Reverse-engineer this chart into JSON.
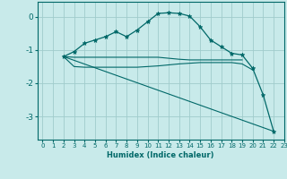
{
  "bg_color": "#c8eaea",
  "grid_color": "#a0cccc",
  "line_color": "#006868",
  "xlabel": "Humidex (Indice chaleur)",
  "xlim": [
    -0.5,
    23
  ],
  "ylim": [
    -3.7,
    0.45
  ],
  "yticks": [
    0,
    -1,
    -2,
    -3
  ],
  "xticks": [
    0,
    1,
    2,
    3,
    4,
    5,
    6,
    7,
    8,
    9,
    10,
    11,
    12,
    13,
    14,
    15,
    16,
    17,
    18,
    19,
    20,
    21,
    22,
    23
  ],
  "series": [
    {
      "x": [
        2,
        3,
        4,
        5,
        6,
        7,
        8,
        9,
        10,
        11,
        12,
        13,
        14,
        15,
        16,
        17,
        18,
        19,
        20,
        21,
        22
      ],
      "y": [
        -1.2,
        -1.05,
        -0.8,
        -0.7,
        -0.6,
        -0.45,
        -0.6,
        -0.4,
        -0.15,
        0.1,
        0.12,
        0.1,
        0.02,
        -0.3,
        -0.7,
        -0.9,
        -1.1,
        -1.15,
        -1.55,
        -2.35,
        -3.45
      ],
      "marker": true
    },
    {
      "x": [
        2,
        3,
        4,
        5,
        6,
        7,
        8,
        9,
        10,
        11,
        12,
        13,
        14,
        15,
        16,
        17,
        18,
        19,
        20
      ],
      "y": [
        -1.2,
        -1.5,
        -1.52,
        -1.52,
        -1.52,
        -1.52,
        -1.52,
        -1.52,
        -1.5,
        -1.48,
        -1.45,
        -1.42,
        -1.4,
        -1.38,
        -1.38,
        -1.38,
        -1.38,
        -1.42,
        -1.6
      ],
      "marker": false
    },
    {
      "x": [
        2,
        3,
        4,
        5,
        6,
        7,
        8,
        9,
        10,
        11,
        12,
        13,
        14,
        15,
        16,
        17,
        18,
        19
      ],
      "y": [
        -1.2,
        -1.22,
        -1.22,
        -1.22,
        -1.22,
        -1.22,
        -1.22,
        -1.22,
        -1.22,
        -1.22,
        -1.25,
        -1.28,
        -1.3,
        -1.3,
        -1.3,
        -1.3,
        -1.3,
        -1.3
      ],
      "marker": false
    },
    {
      "x": [
        2,
        22
      ],
      "y": [
        -1.2,
        -3.45
      ],
      "marker": false
    }
  ]
}
